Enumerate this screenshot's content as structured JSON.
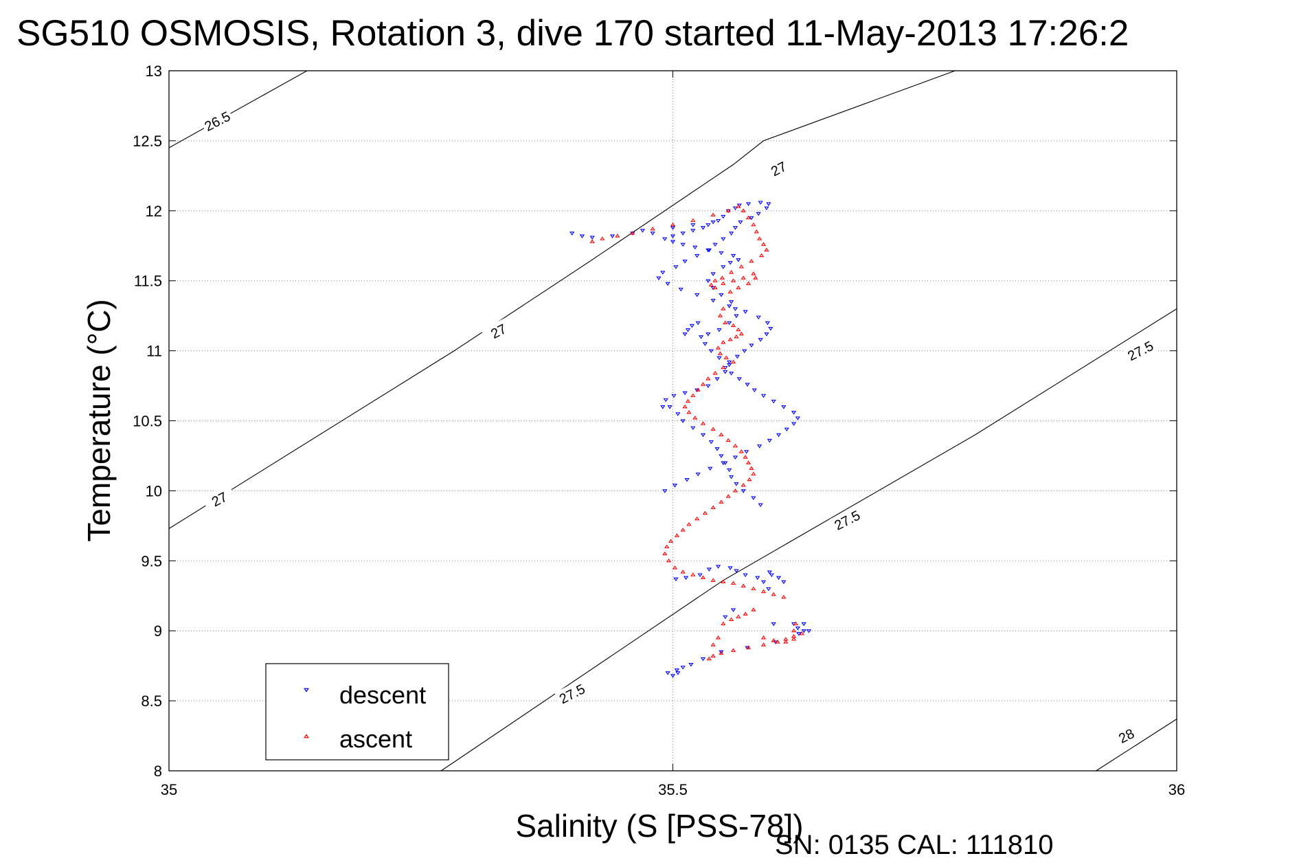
{
  "chart_data": {
    "type": "scatter",
    "title": "SG510 OSMOSIS, Rotation 3, dive 170 started 11-May-2013 17:26:2",
    "xlabel": "Salinity (S [PSS-78])",
    "ylabel": "Temperature (°C)",
    "xlim": [
      35,
      36
    ],
    "ylim": [
      8,
      13
    ],
    "xticks": [
      "35",
      "35.5",
      "36"
    ],
    "yticks": [
      "8",
      "8.5",
      "9",
      "9.5",
      "10",
      "10.5",
      "11",
      "11.5",
      "12",
      "12.5",
      "13"
    ],
    "grid": true,
    "legend_position": "bottom-left",
    "density_contours": [
      {
        "label": "26.5",
        "points": [
          [
            35.0,
            12.45
          ],
          [
            35.137,
            13.0
          ]
        ],
        "label_at": [
          35.048,
          12.64
        ]
      },
      {
        "label": "27",
        "points": [
          [
            35.0,
            9.73
          ],
          [
            35.283,
            11.0
          ],
          [
            35.42,
            11.65
          ],
          [
            35.56,
            12.33
          ],
          [
            35.59,
            12.5
          ],
          [
            35.78,
            13.0
          ]
        ],
        "label_at": [
          35.05,
          9.94
        ],
        "label_at_2": [
          35.327,
          11.14
        ],
        "label_at_3": [
          35.605,
          12.3
        ]
      },
      {
        "label": "27.5",
        "points": [
          [
            35.27,
            8.0
          ],
          [
            35.55,
            9.36
          ],
          [
            35.8,
            10.4
          ],
          [
            36.0,
            11.3
          ]
        ],
        "label_at": [
          35.4,
          8.55
        ],
        "label_at_2": [
          35.673,
          9.79
        ],
        "label_at_3": [
          35.964,
          11.0
        ]
      },
      {
        "label": "28",
        "points": [
          [
            35.92,
            8.0
          ],
          [
            36.0,
            8.37
          ]
        ],
        "label_at": [
          35.95,
          8.25
        ]
      }
    ],
    "series": [
      {
        "name": "descent",
        "color": "#0000ff",
        "marker": "triangle-down",
        "x": [
          35.48,
          35.62,
          35.624,
          35.63,
          35.6,
          35.552,
          35.56,
          35.595,
          35.61,
          35.605,
          35.598,
          35.596,
          35.63,
          35.635,
          35.625,
          35.602,
          35.574,
          35.548,
          35.53,
          35.518,
          35.51,
          35.504,
          35.495,
          35.503,
          35.513,
          35.527,
          35.536,
          35.545,
          35.557,
          35.563,
          35.572,
          35.584,
          35.59,
          35.587,
          35.58,
          35.57,
          35.563,
          35.558,
          35.556,
          35.552,
          35.548,
          35.544,
          35.538,
          35.53,
          35.52,
          35.51,
          35.505,
          35.497,
          35.493,
          35.501,
          35.512,
          35.524,
          35.535,
          35.544,
          35.552,
          35.556,
          35.546,
          35.538,
          35.532,
          35.528,
          35.535,
          35.546,
          35.556,
          35.563,
          35.562,
          35.558,
          35.548,
          35.54,
          35.535,
          35.54,
          35.55,
          35.557,
          35.565,
          35.56,
          35.548,
          35.536,
          35.522,
          35.51,
          35.5,
          35.492,
          35.5,
          35.51,
          35.52,
          35.53,
          35.535,
          35.545,
          35.55,
          35.555,
          35.562,
          35.566,
          35.575,
          35.587,
          35.595,
          35.593,
          35.585,
          35.578,
          35.567,
          35.562,
          35.558,
          35.55,
          35.542,
          35.535,
          35.524,
          35.512,
          35.503,
          35.49,
          35.486,
          35.495,
          35.508,
          35.524,
          35.54,
          35.556,
          35.572,
          35.585,
          35.594,
          35.597,
          35.593,
          35.587,
          35.578,
          35.571,
          35.564,
          35.556,
          35.552,
          35.558,
          35.566,
          35.574,
          35.581,
          35.59,
          35.6,
          35.61,
          35.62,
          35.624,
          35.62,
          35.613,
          35.605,
          35.596,
          35.586,
          35.573,
          35.562,
          35.55,
          35.537,
          35.525,
          35.514,
          35.502,
          35.492,
          35.4,
          35.41,
          35.42,
          35.44,
          35.46,
          35.47,
          35.5,
          35.52,
          35.54,
          35.525,
          35.519,
          35.515,
          35.512,
          35.49,
          35.5,
          35.505
        ],
        "y": [
          11.84,
          9.05,
          9.02,
          9.0,
          9.05,
          9.1,
          9.15,
          9.3,
          9.35,
          9.38,
          9.4,
          9.42,
          9.05,
          9.0,
          8.98,
          8.92,
          8.88,
          8.85,
          8.8,
          8.76,
          8.74,
          8.72,
          8.7,
          9.37,
          9.38,
          9.4,
          9.44,
          9.46,
          9.45,
          9.43,
          9.4,
          9.38,
          9.35,
          9.9,
          9.95,
          10.0,
          10.05,
          10.1,
          10.15,
          10.2,
          10.25,
          10.3,
          10.35,
          10.4,
          10.45,
          10.5,
          10.55,
          10.6,
          10.65,
          10.68,
          10.7,
          10.72,
          10.75,
          10.8,
          10.85,
          10.9,
          10.95,
          11.0,
          11.05,
          11.1,
          11.12,
          11.15,
          11.2,
          11.25,
          11.3,
          11.35,
          11.4,
          11.45,
          11.5,
          11.55,
          11.6,
          11.63,
          11.65,
          11.68,
          11.7,
          11.72,
          11.74,
          11.76,
          11.78,
          11.8,
          11.82,
          11.84,
          11.86,
          11.88,
          11.9,
          11.93,
          11.96,
          12.0,
          12.02,
          12.04,
          12.05,
          12.06,
          12.05,
          12.02,
          11.98,
          11.95,
          11.92,
          11.88,
          11.84,
          11.8,
          11.76,
          11.72,
          11.68,
          11.64,
          11.6,
          11.56,
          11.52,
          11.48,
          11.44,
          11.4,
          11.36,
          11.32,
          11.28,
          11.24,
          11.2,
          11.16,
          11.12,
          11.08,
          11.04,
          11.0,
          10.96,
          10.92,
          10.88,
          10.84,
          10.8,
          10.76,
          10.72,
          10.68,
          10.64,
          10.6,
          10.56,
          10.52,
          10.48,
          10.44,
          10.4,
          10.36,
          10.32,
          10.28,
          10.24,
          10.2,
          10.16,
          10.12,
          10.08,
          10.04,
          10.0,
          11.84,
          11.82,
          11.81,
          11.82,
          11.84,
          11.86,
          11.88,
          11.9,
          11.92,
          11.2,
          11.18,
          11.15,
          11.12,
          10.6,
          8.68,
          8.7
        ],
        "legend": "descent"
      },
      {
        "name": "ascent",
        "color": "#ff0000",
        "marker": "triangle-up",
        "x": [
          35.42,
          35.43,
          35.445,
          35.46,
          35.48,
          35.5,
          35.52,
          35.54,
          35.555,
          35.565,
          35.57,
          35.575,
          35.58,
          35.583,
          35.586,
          35.59,
          35.593,
          35.588,
          35.578,
          35.568,
          35.558,
          35.549,
          35.542,
          35.538,
          35.542,
          35.55,
          35.56,
          35.57,
          35.58,
          35.582,
          35.575,
          35.565,
          35.557,
          35.55,
          35.547,
          35.552,
          35.56,
          35.565,
          35.568,
          35.563,
          35.557,
          35.55,
          35.545,
          35.547,
          35.553,
          35.56,
          35.55,
          35.542,
          35.535,
          35.53,
          35.525,
          35.52,
          35.515,
          35.512,
          35.516,
          35.522,
          35.53,
          35.54,
          35.548,
          35.555,
          35.562,
          35.568,
          35.572,
          35.575,
          35.578,
          35.58,
          35.576,
          35.57,
          35.562,
          35.555,
          35.548,
          35.54,
          35.532,
          35.524,
          35.516,
          35.51,
          35.504,
          35.498,
          35.494,
          35.492,
          35.496,
          35.502,
          35.51,
          35.52,
          35.53,
          35.54,
          35.55,
          35.56,
          35.57,
          35.58,
          35.59,
          35.6,
          35.61,
          35.62,
          35.628,
          35.62,
          35.612,
          35.604,
          35.59,
          35.575,
          35.56,
          35.548,
          35.54,
          35.536,
          35.54,
          35.545,
          35.55,
          35.558,
          35.565,
          35.572,
          35.58,
          35.59,
          35.6,
          35.612,
          35.62,
          35.622
        ],
        "y": [
          11.78,
          11.8,
          11.82,
          11.84,
          11.87,
          11.9,
          11.93,
          11.97,
          12.0,
          12.03,
          12.0,
          11.95,
          11.9,
          11.85,
          11.8,
          11.76,
          11.72,
          11.68,
          11.64,
          11.6,
          11.56,
          11.52,
          11.5,
          11.47,
          11.45,
          11.48,
          11.5,
          11.52,
          11.55,
          11.52,
          11.48,
          11.45,
          11.42,
          11.3,
          11.25,
          11.2,
          11.18,
          11.15,
          11.12,
          11.1,
          11.08,
          11.06,
          11.02,
          10.98,
          10.95,
          10.92,
          10.88,
          10.84,
          10.8,
          10.76,
          10.72,
          10.68,
          10.64,
          10.6,
          10.56,
          10.52,
          10.48,
          10.44,
          10.4,
          10.36,
          10.32,
          10.28,
          10.24,
          10.2,
          10.16,
          10.12,
          10.08,
          10.04,
          10.0,
          9.96,
          9.92,
          9.88,
          9.84,
          9.8,
          9.76,
          9.72,
          9.68,
          9.64,
          9.6,
          9.55,
          9.5,
          9.45,
          9.42,
          9.4,
          9.38,
          9.36,
          9.35,
          9.34,
          9.32,
          9.3,
          9.28,
          9.26,
          9.24,
          9.0,
          8.98,
          8.96,
          8.94,
          8.92,
          8.9,
          8.88,
          8.86,
          8.84,
          8.82,
          8.8,
          8.9,
          8.95,
          9.05,
          9.08,
          9.1,
          9.12,
          9.15,
          8.95,
          8.93,
          8.92,
          8.94,
          9.05
        ],
        "legend": "ascent"
      }
    ]
  },
  "legend": {
    "items": [
      {
        "label": "descent",
        "color": "#0000ff",
        "marker": "triangle-down"
      },
      {
        "label": "ascent",
        "color": "#ff0000",
        "marker": "triangle-up"
      }
    ]
  },
  "footer": {
    "sn_cal": "SN: 0135  CAL: 111810"
  }
}
